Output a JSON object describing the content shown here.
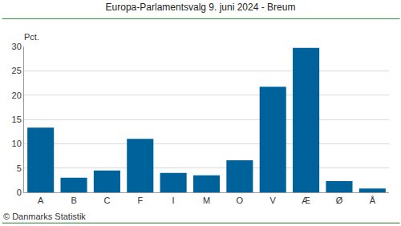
{
  "chart_data": {
    "type": "bar",
    "title": "Europa-Parlamentsvalg 9. juni 2024 - Breum",
    "ylabel": "Pct.",
    "annotations": [
      "© Danmarks Statistik"
    ],
    "categories": [
      "A",
      "B",
      "C",
      "F",
      "I",
      "M",
      "O",
      "V",
      "Æ",
      "Ø",
      "Å"
    ],
    "values": [
      13.3,
      3.0,
      4.5,
      11.0,
      4.0,
      3.5,
      6.6,
      21.7,
      29.7,
      2.3,
      0.8
    ],
    "color": "#00629b",
    "ylim": [
      0,
      30
    ],
    "yticks": [
      0,
      5,
      10,
      15,
      20,
      25,
      30
    ],
    "grid": true
  }
}
